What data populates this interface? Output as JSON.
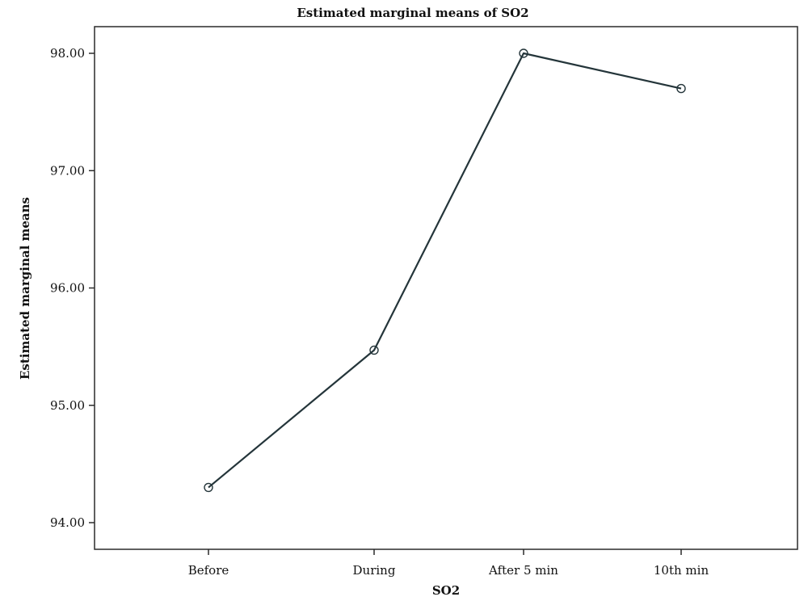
{
  "chart_data": {
    "type": "line",
    "title": "Estimated marginal means of SO2",
    "xlabel": "SO2",
    "ylabel": "Estimated marginal means",
    "categories": [
      "Before",
      "During",
      "After 5 min",
      "10th min"
    ],
    "yticks": [
      "94.00",
      "95.00",
      "96.00",
      "97.00",
      "98.00"
    ],
    "ylim": [
      93.75,
      98.3
    ],
    "series": [
      {
        "values": [
          94.3,
          95.47,
          98.0,
          97.7
        ]
      }
    ],
    "marker": "open-circle",
    "grid": false,
    "colors": {
      "line": "#24353a",
      "axis": "#2b2b2b",
      "text": "#111111"
    }
  }
}
